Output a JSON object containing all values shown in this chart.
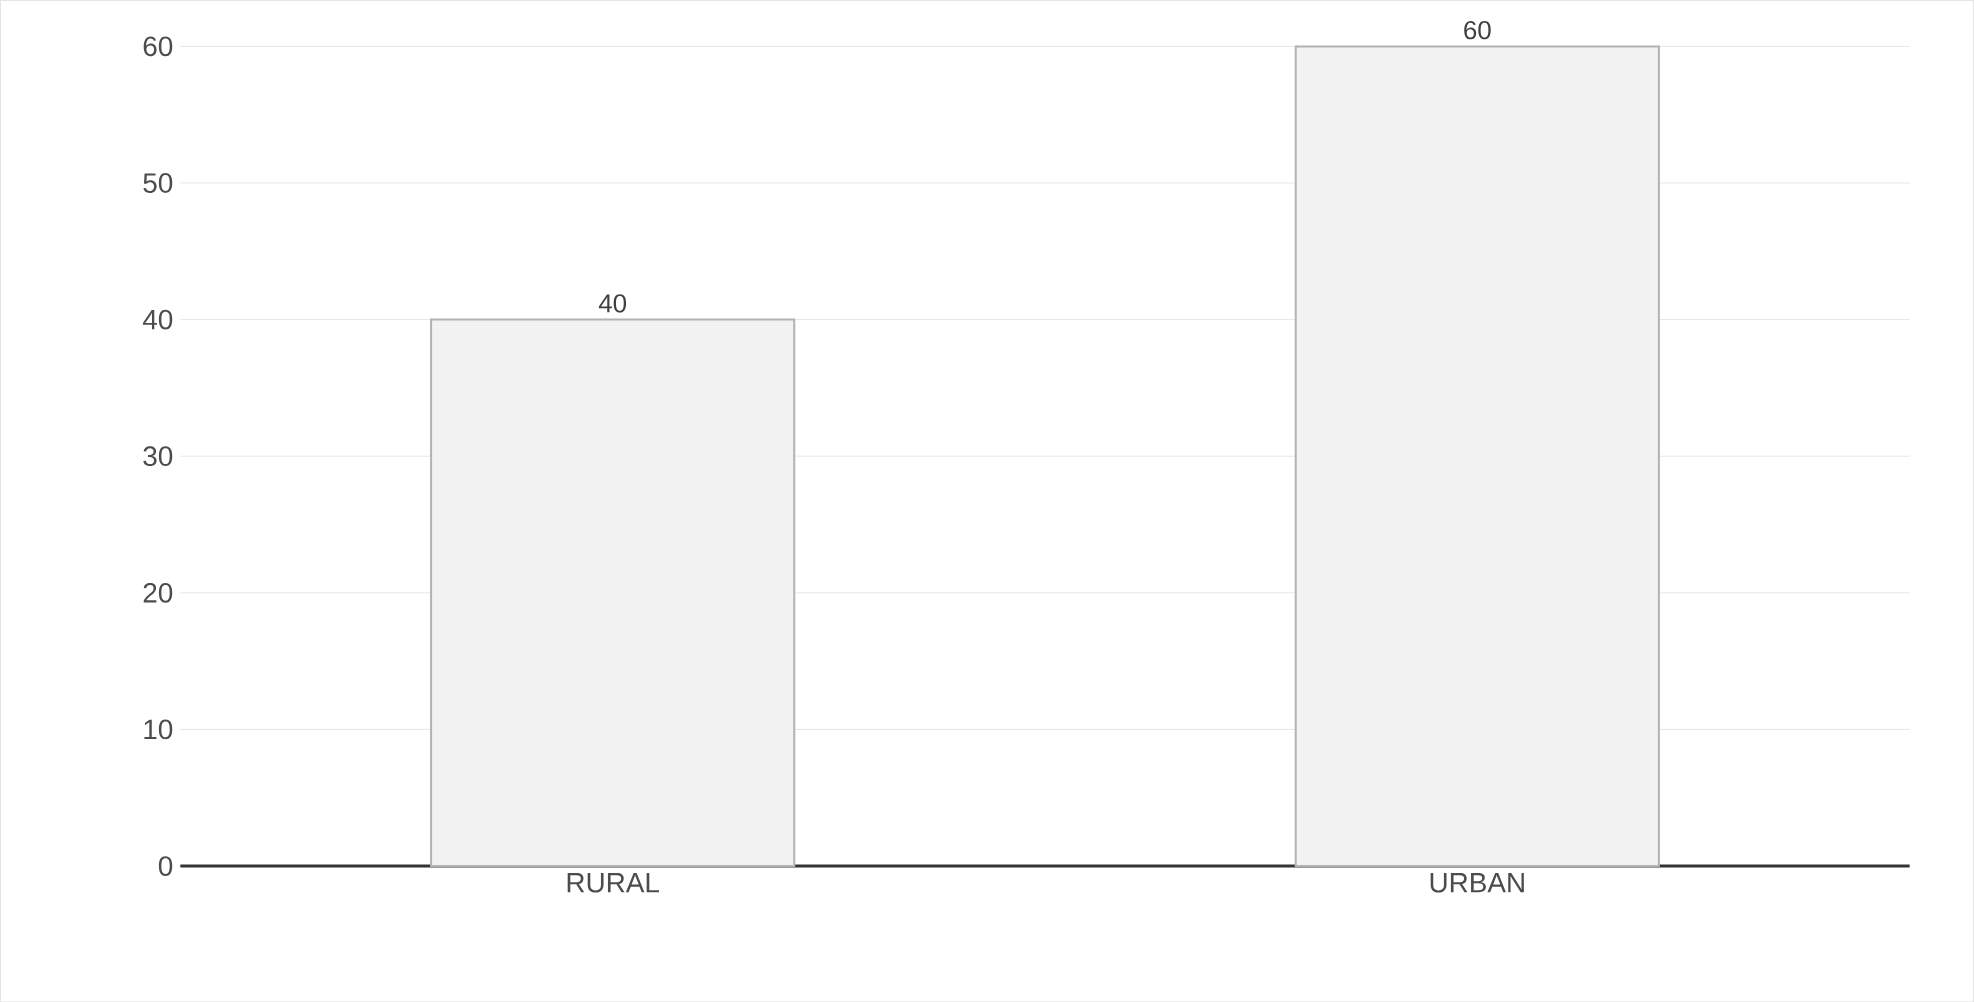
{
  "chart_data": {
    "type": "bar",
    "categories": [
      "RURAL",
      "URBAN"
    ],
    "values": [
      40,
      60
    ],
    "color": "#f2f2f2",
    "ylim": [
      0,
      60
    ],
    "yticks": [
      0,
      10,
      20,
      30,
      40,
      50,
      60
    ],
    "grid": "y",
    "data_labels": true
  }
}
